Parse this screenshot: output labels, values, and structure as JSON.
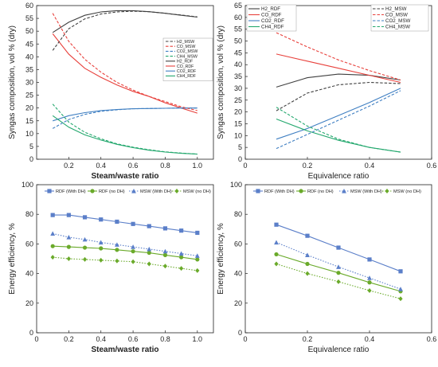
{
  "chart_data": [
    {
      "type": "line",
      "panel": "top-left",
      "xlabel": "Steam/waste ratio",
      "ylabel": "Syngas composition, vol % (dry)",
      "xlim": [
        0,
        1.1
      ],
      "ylim": [
        0,
        60
      ],
      "xticks": [
        0.2,
        0.4,
        0.6,
        0.8,
        1.0
      ],
      "xticklabels": [
        "0.2",
        "0.4",
        "0.6",
        "0.8",
        "1.0"
      ],
      "yticks": [
        0,
        5,
        10,
        15,
        20,
        25,
        30,
        35,
        40,
        45,
        50,
        55,
        60
      ],
      "grid": false,
      "legend_position": "right",
      "series": [
        {
          "name": "H2_RDF",
          "color": "#404040",
          "dash": "solid",
          "x": [
            0.1,
            0.2,
            0.3,
            0.4,
            0.5,
            0.6,
            0.7,
            0.8,
            0.9,
            1.0
          ],
          "values": [
            49.5,
            53.5,
            56.2,
            57.5,
            58.0,
            58.0,
            57.6,
            57.0,
            56.2,
            55.5
          ]
        },
        {
          "name": "CO_RDF",
          "color": "#e8413c",
          "dash": "solid",
          "x": [
            0.1,
            0.2,
            0.3,
            0.4,
            0.5,
            0.6,
            0.7,
            0.8,
            0.9,
            1.0
          ],
          "values": [
            49.0,
            41.0,
            35.5,
            32.0,
            29.0,
            26.5,
            24.5,
            22.0,
            20.0,
            18.0
          ]
        },
        {
          "name": "CO2_RDF",
          "color": "#3f7fc2",
          "dash": "solid",
          "x": [
            0.1,
            0.2,
            0.3,
            0.4,
            0.5,
            0.6,
            0.7,
            0.8,
            0.9,
            1.0
          ],
          "values": [
            15.0,
            17.0,
            18.2,
            19.0,
            19.4,
            19.7,
            19.8,
            19.9,
            20.0,
            20.0
          ]
        },
        {
          "name": "CH4_RDF",
          "color": "#24a86e",
          "dash": "solid",
          "x": [
            0.1,
            0.2,
            0.3,
            0.4,
            0.5,
            0.6,
            0.7,
            0.8,
            0.9,
            1.0
          ],
          "values": [
            17.0,
            12.5,
            9.5,
            7.5,
            5.8,
            4.5,
            3.5,
            2.8,
            2.3,
            2.0
          ]
        },
        {
          "name": "H2_MSW",
          "color": "#404040",
          "dash": "dashed",
          "x": [
            0.1,
            0.2,
            0.3,
            0.4,
            0.5,
            0.6,
            0.7,
            0.8,
            0.9,
            1.0
          ],
          "values": [
            42.5,
            51.0,
            54.8,
            56.7,
            57.5,
            57.8,
            57.6,
            57.0,
            56.3,
            55.6
          ]
        },
        {
          "name": "CO_MSW",
          "color": "#e8413c",
          "dash": "dashed",
          "x": [
            0.1,
            0.2,
            0.3,
            0.4,
            0.5,
            0.6,
            0.7,
            0.8,
            0.9,
            1.0
          ],
          "values": [
            57.0,
            46.0,
            39.0,
            34.0,
            30.0,
            27.0,
            24.5,
            22.5,
            20.5,
            19.0
          ]
        },
        {
          "name": "CO2_MSW",
          "color": "#3f7fc2",
          "dash": "dashed",
          "x": [
            0.1,
            0.2,
            0.3,
            0.4,
            0.5,
            0.6,
            0.7,
            0.8,
            0.9,
            1.0
          ],
          "values": [
            12.0,
            15.5,
            17.5,
            18.7,
            19.3,
            19.7,
            19.8,
            19.9,
            20.0,
            20.0
          ]
        },
        {
          "name": "CH4_MSW",
          "color": "#24a86e",
          "dash": "dashed",
          "x": [
            0.1,
            0.2,
            0.3,
            0.4,
            0.5,
            0.6,
            0.7,
            0.8,
            0.9,
            1.0
          ],
          "values": [
            21.5,
            14.5,
            10.5,
            8.0,
            6.0,
            4.7,
            3.7,
            2.9,
            2.4,
            2.0
          ]
        }
      ]
    },
    {
      "type": "line",
      "panel": "top-right",
      "xlabel": "Equivalence ratio",
      "ylabel": "Syngas composition, vol % (dry)",
      "xlim": [
        0,
        0.6
      ],
      "ylim": [
        0,
        65
      ],
      "xticks": [
        0,
        0.2,
        0.4,
        0.6
      ],
      "xticklabels": [
        "0",
        "0.2",
        "0.4",
        "0.6"
      ],
      "yticks": [
        0,
        5,
        10,
        15,
        20,
        25,
        30,
        35,
        40,
        45,
        50,
        55,
        60,
        65
      ],
      "grid": false,
      "legend_position": "top-left",
      "series": [
        {
          "name": "H2_RDF",
          "color": "#404040",
          "dash": "solid",
          "x": [
            0.1,
            0.2,
            0.3,
            0.4,
            0.5
          ],
          "values": [
            30.5,
            34.5,
            36.0,
            35.5,
            33.5
          ]
        },
        {
          "name": "CO_RDF",
          "color": "#e8413c",
          "dash": "solid",
          "x": [
            0.1,
            0.2,
            0.3,
            0.4,
            0.5
          ],
          "values": [
            44.5,
            41.5,
            38.5,
            35.5,
            32.5
          ]
        },
        {
          "name": "CO2_RDF",
          "color": "#3f7fc2",
          "dash": "solid",
          "x": [
            0.1,
            0.2,
            0.3,
            0.4,
            0.5
          ],
          "values": [
            8.5,
            13.0,
            18.5,
            24.0,
            30.0
          ]
        },
        {
          "name": "CH4_RDF",
          "color": "#24a86e",
          "dash": "solid",
          "x": [
            0.1,
            0.2,
            0.3,
            0.4,
            0.5
          ],
          "values": [
            17.0,
            12.0,
            8.0,
            5.0,
            3.0
          ]
        },
        {
          "name": "H2_MSW",
          "color": "#404040",
          "dash": "dashed",
          "x": [
            0.1,
            0.2,
            0.3,
            0.4,
            0.5
          ],
          "values": [
            20.5,
            28.0,
            31.5,
            32.5,
            32.0
          ]
        },
        {
          "name": "CO_MSW",
          "color": "#e8413c",
          "dash": "dashed",
          "x": [
            0.1,
            0.2,
            0.3,
            0.4,
            0.5
          ],
          "values": [
            53.5,
            47.5,
            42.0,
            37.5,
            33.5
          ]
        },
        {
          "name": "CO2_MSW",
          "color": "#3f7fc2",
          "dash": "dashed",
          "x": [
            0.1,
            0.2,
            0.3,
            0.4,
            0.5
          ],
          "values": [
            4.5,
            10.5,
            16.5,
            22.5,
            29.0
          ]
        },
        {
          "name": "CH4_MSW",
          "color": "#24a86e",
          "dash": "dashed",
          "x": [
            0.1,
            0.2,
            0.3,
            0.4,
            0.5
          ],
          "values": [
            22.0,
            14.0,
            8.5,
            5.0,
            3.0
          ]
        }
      ]
    },
    {
      "type": "line",
      "panel": "bottom-left",
      "xlabel": "Steam/waste ratio",
      "ylabel": "Energy efficiency, %",
      "xlim": [
        0,
        1.1
      ],
      "ylim": [
        0,
        100
      ],
      "xticks": [
        0,
        0.2,
        0.4,
        0.6,
        0.8,
        1.0
      ],
      "xticklabels": [
        "0",
        "0.2",
        "0.4",
        "0.6",
        "0.8",
        "1.0"
      ],
      "yticks": [
        0,
        20,
        40,
        60,
        80,
        100
      ],
      "grid": false,
      "legend_position": "top",
      "series": [
        {
          "name": "RDF (With DH)",
          "color": "#5b7fc9",
          "dash": "solid",
          "marker": "square",
          "x": [
            0.1,
            0.2,
            0.3,
            0.4,
            0.5,
            0.6,
            0.7,
            0.8,
            0.9,
            1.0
          ],
          "values": [
            79.5,
            79.5,
            78.0,
            76.5,
            75.0,
            73.5,
            72.0,
            70.5,
            69.0,
            67.5
          ]
        },
        {
          "name": "RDF (no DH)",
          "color": "#6aaa2a",
          "dash": "solid",
          "marker": "circle",
          "x": [
            0.1,
            0.2,
            0.3,
            0.4,
            0.5,
            0.6,
            0.7,
            0.8,
            0.9,
            1.0
          ],
          "values": [
            58.5,
            58.0,
            57.5,
            57.0,
            56.0,
            55.0,
            54.0,
            52.5,
            51.0,
            49.5
          ]
        },
        {
          "name": "MSW (With DH)",
          "color": "#5b7fc9",
          "dash": "dotted",
          "marker": "triangle",
          "x": [
            0.1,
            0.2,
            0.3,
            0.4,
            0.5,
            0.6,
            0.7,
            0.8,
            0.9,
            1.0
          ],
          "values": [
            67.0,
            64.5,
            63.0,
            61.0,
            59.5,
            58.0,
            56.5,
            55.0,
            53.5,
            52.0
          ]
        },
        {
          "name": "MSW (no DH)",
          "color": "#6aaa2a",
          "dash": "dotted",
          "marker": "diamond",
          "x": [
            0.1,
            0.2,
            0.3,
            0.4,
            0.5,
            0.6,
            0.7,
            0.8,
            0.9,
            1.0
          ],
          "values": [
            51.0,
            50.0,
            49.5,
            49.0,
            48.5,
            48.0,
            46.5,
            45.0,
            43.5,
            42.0
          ]
        }
      ]
    },
    {
      "type": "line",
      "panel": "bottom-right",
      "xlabel": "Equivalence ratio",
      "ylabel": "Energy efficiency, %",
      "xlim": [
        0,
        0.6
      ],
      "ylim": [
        0,
        100
      ],
      "xticks": [
        0,
        0.2,
        0.4,
        0.6
      ],
      "xticklabels": [
        "0",
        "0.2",
        "0.4",
        "0.6"
      ],
      "yticks": [
        0,
        20,
        40,
        60,
        80,
        100
      ],
      "grid": false,
      "legend_position": "top",
      "series": [
        {
          "name": "RDF (With DH)",
          "color": "#5b7fc9",
          "dash": "solid",
          "marker": "square",
          "x": [
            0.1,
            0.2,
            0.3,
            0.4,
            0.5
          ],
          "values": [
            73.0,
            65.5,
            57.5,
            49.5,
            41.5
          ]
        },
        {
          "name": "RDF (no DH)",
          "color": "#6aaa2a",
          "dash": "solid",
          "marker": "circle",
          "x": [
            0.1,
            0.2,
            0.3,
            0.4,
            0.5
          ],
          "values": [
            53.0,
            46.5,
            40.5,
            34.0,
            28.0
          ]
        },
        {
          "name": "MSW (With DH)",
          "color": "#5b7fc9",
          "dash": "dotted",
          "marker": "triangle",
          "x": [
            0.1,
            0.2,
            0.3,
            0.4,
            0.5
          ],
          "values": [
            61.0,
            52.5,
            44.5,
            37.0,
            29.5
          ]
        },
        {
          "name": "MSW (no DH)",
          "color": "#6aaa2a",
          "dash": "dotted",
          "marker": "diamond",
          "x": [
            0.1,
            0.2,
            0.3,
            0.4,
            0.5
          ],
          "values": [
            46.5,
            40.0,
            34.5,
            28.5,
            23.0
          ]
        }
      ]
    }
  ]
}
